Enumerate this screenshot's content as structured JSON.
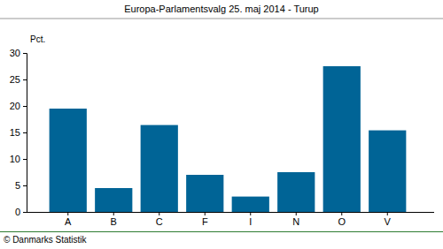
{
  "chart_data": {
    "type": "bar",
    "title": "Europa-Parlamentsvalg 25. maj 2014 - Turup",
    "ylabel": "Pct.",
    "annotation": "© Danmarks Statistik",
    "categories": [
      "A",
      "B",
      "C",
      "F",
      "I",
      "N",
      "O",
      "V"
    ],
    "values": [
      19.5,
      4.5,
      16.4,
      7.0,
      2.9,
      7.5,
      27.5,
      15.4
    ],
    "color": "#006496",
    "ylim": [
      0,
      30
    ],
    "yticks": [
      0,
      5,
      10,
      15,
      20,
      25,
      30
    ],
    "grid": false
  }
}
